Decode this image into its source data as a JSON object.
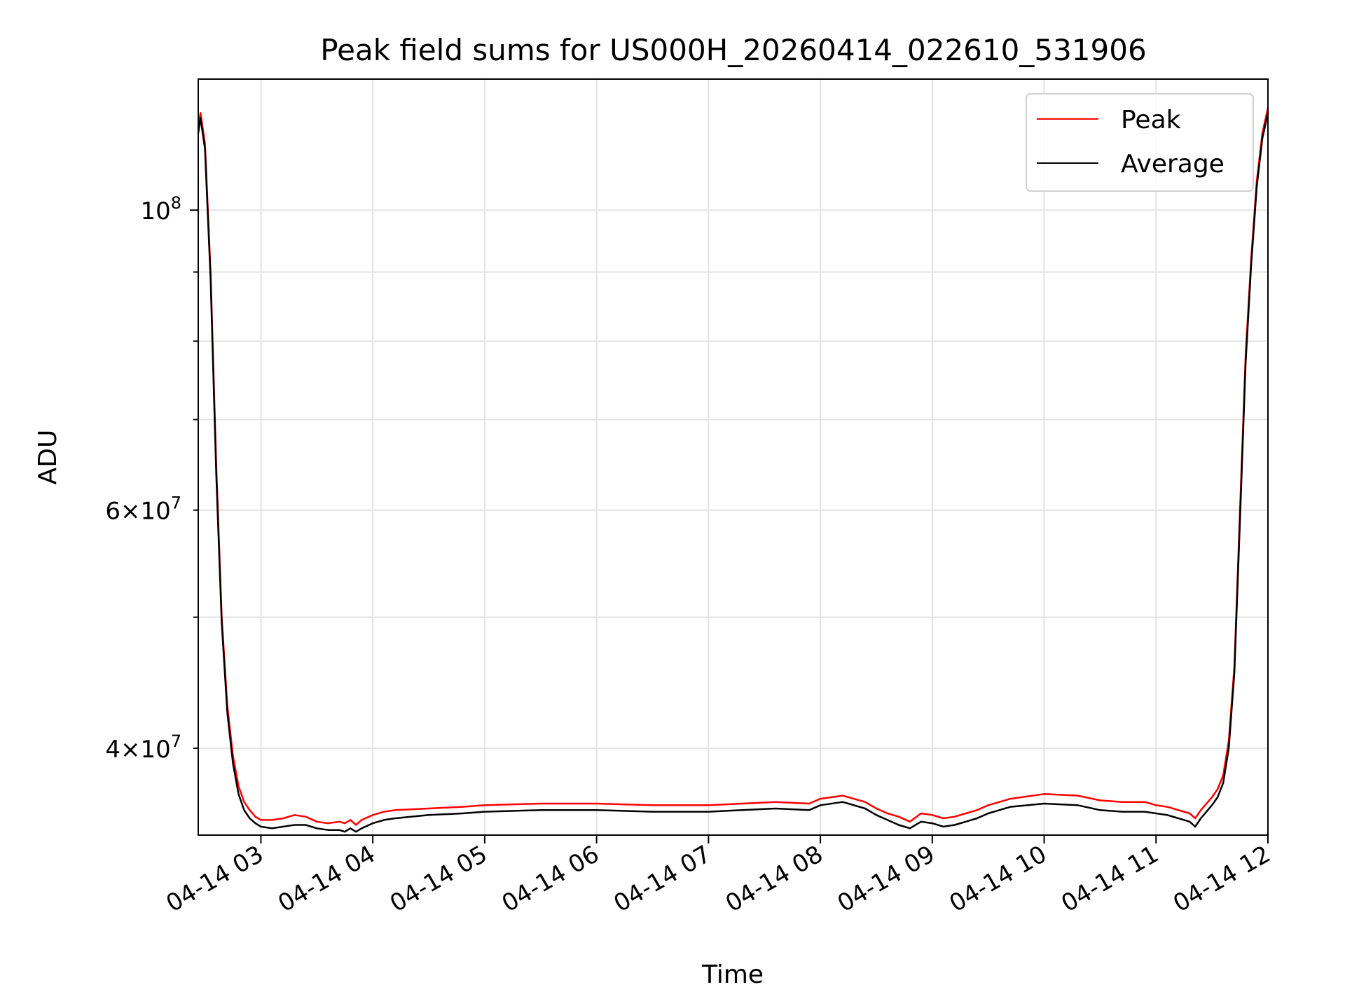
{
  "chart_data": {
    "type": "line",
    "title": "Peak field sums for US000H_20260414_022610_531906",
    "xlabel": "Time",
    "ylabel": "ADU",
    "yscale": "log",
    "grid": true,
    "legend_position": "upper right",
    "xlim": [
      2.44,
      12.0
    ],
    "ylim": [
      34500000,
      125000000
    ],
    "x_ticks": [
      {
        "value": 3,
        "label": "04-14 03"
      },
      {
        "value": 4,
        "label": "04-14 04"
      },
      {
        "value": 5,
        "label": "04-14 05"
      },
      {
        "value": 6,
        "label": "04-14 06"
      },
      {
        "value": 7,
        "label": "04-14 07"
      },
      {
        "value": 8,
        "label": "04-14 08"
      },
      {
        "value": 9,
        "label": "04-14 09"
      },
      {
        "value": 10,
        "label": "04-14 10"
      },
      {
        "value": 11,
        "label": "04-14 11"
      },
      {
        "value": 12,
        "label": "04-14 12"
      }
    ],
    "y_major_ticks": [
      {
        "value": 100000000,
        "base": "10",
        "exp": "8"
      }
    ],
    "y_minor_ticks": [
      {
        "value": 40000000,
        "mant": "4",
        "base": "10",
        "exp": "7"
      },
      {
        "value": 50000000
      },
      {
        "value": 60000000,
        "mant": "6",
        "base": "10",
        "exp": "7"
      },
      {
        "value": 70000000
      },
      {
        "value": 80000000
      },
      {
        "value": 90000000
      }
    ],
    "series": [
      {
        "name": "Peak",
        "color": "#ff0000",
        "x": [
          2.44,
          2.46,
          2.5,
          2.55,
          2.6,
          2.65,
          2.7,
          2.75,
          2.8,
          2.85,
          2.9,
          2.95,
          3.0,
          3.1,
          3.2,
          3.3,
          3.4,
          3.5,
          3.6,
          3.7,
          3.75,
          3.8,
          3.85,
          3.9,
          4.0,
          4.1,
          4.2,
          4.5,
          4.8,
          5.0,
          5.5,
          6.0,
          6.5,
          7.0,
          7.3,
          7.6,
          7.9,
          8.0,
          8.2,
          8.4,
          8.5,
          8.6,
          8.7,
          8.8,
          8.9,
          9.0,
          9.1,
          9.2,
          9.3,
          9.4,
          9.5,
          9.7,
          10.0,
          10.3,
          10.5,
          10.7,
          10.9,
          11.0,
          11.1,
          11.2,
          11.3,
          11.35,
          11.4,
          11.5,
          11.55,
          11.6,
          11.65,
          11.7,
          11.75,
          11.8,
          11.85,
          11.9,
          11.95,
          12.0
        ],
        "values": [
          115000000,
          118000000,
          112000000,
          90000000,
          65000000,
          50000000,
          43000000,
          39500000,
          37500000,
          36500000,
          36000000,
          35600000,
          35400000,
          35400000,
          35500000,
          35700000,
          35600000,
          35300000,
          35200000,
          35300000,
          35200000,
          35400000,
          35100000,
          35400000,
          35700000,
          35900000,
          36000000,
          36100000,
          36200000,
          36300000,
          36400000,
          36400000,
          36300000,
          36300000,
          36400000,
          36500000,
          36400000,
          36700000,
          36900000,
          36500000,
          36100000,
          35800000,
          35600000,
          35300000,
          35800000,
          35700000,
          35500000,
          35600000,
          35800000,
          36000000,
          36300000,
          36700000,
          37000000,
          36900000,
          36600000,
          36500000,
          36500000,
          36300000,
          36200000,
          36000000,
          35800000,
          35500000,
          36000000,
          36800000,
          37300000,
          38200000,
          40500000,
          46000000,
          60000000,
          78000000,
          92000000,
          105000000,
          114000000,
          119000000
        ]
      },
      {
        "name": "Average",
        "color": "#000000",
        "x": [
          2.44,
          2.46,
          2.5,
          2.55,
          2.6,
          2.65,
          2.7,
          2.75,
          2.8,
          2.85,
          2.9,
          2.95,
          3.0,
          3.1,
          3.2,
          3.3,
          3.4,
          3.5,
          3.6,
          3.7,
          3.75,
          3.8,
          3.85,
          3.9,
          4.0,
          4.1,
          4.2,
          4.5,
          4.8,
          5.0,
          5.5,
          6.0,
          6.5,
          7.0,
          7.3,
          7.6,
          7.9,
          8.0,
          8.2,
          8.4,
          8.5,
          8.6,
          8.7,
          8.8,
          8.9,
          9.0,
          9.1,
          9.2,
          9.3,
          9.4,
          9.5,
          9.7,
          10.0,
          10.3,
          10.5,
          10.7,
          10.9,
          11.0,
          11.1,
          11.2,
          11.3,
          11.35,
          11.4,
          11.5,
          11.55,
          11.6,
          11.65,
          11.7,
          11.75,
          11.8,
          11.85,
          11.9,
          11.95,
          12.0
        ],
        "values": [
          114000000,
          117000000,
          111000000,
          89000000,
          64000000,
          49500000,
          42500000,
          39000000,
          37000000,
          36000000,
          35500000,
          35200000,
          35000000,
          34900000,
          35000000,
          35100000,
          35100000,
          34900000,
          34800000,
          34800000,
          34700000,
          34900000,
          34700000,
          34900000,
          35200000,
          35400000,
          35500000,
          35700000,
          35800000,
          35900000,
          36000000,
          36000000,
          35900000,
          35900000,
          36000000,
          36100000,
          36000000,
          36300000,
          36500000,
          36100000,
          35700000,
          35400000,
          35100000,
          34900000,
          35300000,
          35200000,
          35000000,
          35100000,
          35300000,
          35500000,
          35800000,
          36200000,
          36400000,
          36300000,
          36000000,
          35900000,
          35900000,
          35800000,
          35700000,
          35500000,
          35300000,
          35000000,
          35500000,
          36300000,
          36800000,
          37700000,
          40000000,
          45500000,
          59000000,
          77000000,
          91000000,
          104000000,
          113000000,
          118000000
        ]
      }
    ]
  }
}
